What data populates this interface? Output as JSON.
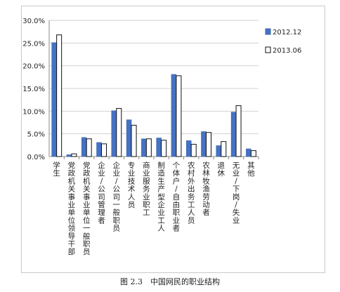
{
  "caption": "图 2.3　中国网民的职业结构",
  "chart_data": {
    "type": "bar",
    "title": "",
    "xlabel": "",
    "ylabel": "",
    "ylim": [
      0,
      30
    ],
    "yticks": [
      "0.0%",
      "5.0%",
      "10.0%",
      "15.0%",
      "20.0%",
      "25.0%",
      "30.0%"
    ],
    "grid": true,
    "legend_position": "top-right",
    "categories": [
      "学生",
      "党政机关事业单位领导干部",
      "党政机关事业单位一般职员",
      "企业/公司管理者",
      "企业/公司一般职员",
      "专业技术人员",
      "商业服务业职工",
      "制造生产型企业工人",
      "个体户/自由职业者",
      "农村外出务工人员",
      "农林牧渔劳动者",
      "退休",
      "无业/下岗/失业",
      "其他"
    ],
    "series": [
      {
        "name": "2012.12",
        "color": "#4472c4",
        "values": [
          25.1,
          0.4,
          4.2,
          3.1,
          10.1,
          8.1,
          3.9,
          4.1,
          18.1,
          3.5,
          5.5,
          2.4,
          9.8,
          1.7
        ]
      },
      {
        "name": "2013.06",
        "color": "#ffffff",
        "values": [
          26.8,
          0.6,
          3.9,
          2.8,
          10.6,
          6.9,
          3.9,
          3.6,
          17.8,
          2.7,
          5.3,
          3.3,
          11.2,
          1.3
        ]
      }
    ]
  }
}
